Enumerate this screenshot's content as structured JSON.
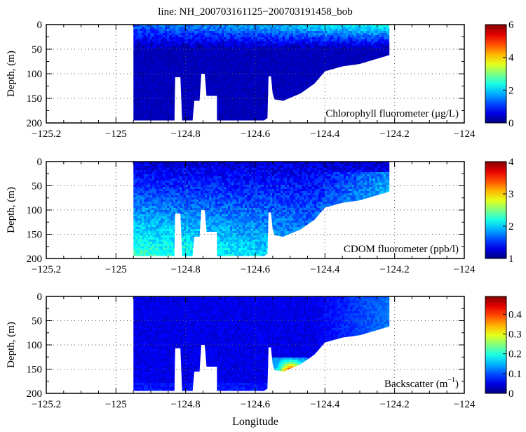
{
  "title": "line: NH_200703161125−200703191458_bob",
  "chart_data": {
    "type": "heatmap",
    "xlabel": "Longitude",
    "ylabel": "Depth, (m)",
    "xlim": [
      -125.2,
      -124
    ],
    "ylim": [
      0,
      200
    ],
    "y_reversed": true,
    "grid": true,
    "x_ticks": [
      -125.2,
      -125,
      -124.8,
      -124.6,
      -124.4,
      -124.2,
      -124
    ],
    "x_tick_labels": [
      "−125.2",
      "−125",
      "−124.8",
      "−124.6",
      "−124.4",
      "−124.2",
      "−124"
    ],
    "y_ticks": [
      0,
      50,
      100,
      150,
      200
    ],
    "y_tick_labels": [
      "0",
      "50",
      "100",
      "150",
      "200"
    ],
    "colormap": "jet",
    "coverage": [
      [
        -124.95,
        0
      ],
      [
        -124.215,
        0
      ],
      [
        -124.215,
        62
      ],
      [
        -124.3,
        80
      ],
      [
        -124.35,
        85
      ],
      [
        -124.4,
        95
      ],
      [
        -124.43,
        120
      ],
      [
        -124.47,
        140
      ],
      [
        -124.52,
        155
      ],
      [
        -124.545,
        152
      ],
      [
        -124.55,
        140
      ],
      [
        -124.555,
        105
      ],
      [
        -124.562,
        105
      ],
      [
        -124.565,
        190
      ],
      [
        -124.575,
        195
      ],
      [
        -124.71,
        195
      ],
      [
        -124.71,
        145
      ],
      [
        -124.74,
        145
      ],
      [
        -124.745,
        100
      ],
      [
        -124.755,
        100
      ],
      [
        -124.76,
        155
      ],
      [
        -124.775,
        155
      ],
      [
        -124.78,
        195
      ],
      [
        -124.81,
        195
      ],
      [
        -124.815,
        107
      ],
      [
        -124.83,
        107
      ],
      [
        -124.832,
        195
      ],
      [
        -124.845,
        195
      ],
      [
        -124.847,
        195
      ],
      [
        -124.95,
        195
      ]
    ],
    "panels": [
      {
        "label": "Chlorophyll fluorometer (μg/L)",
        "variable": "chlorophyll",
        "clim": [
          0,
          6
        ],
        "cbar_ticks": [
          0,
          2,
          4,
          6
        ],
        "cbar_tick_labels": [
          "0",
          "2",
          "4",
          "6"
        ],
        "surface_value": 1.6,
        "deep_value": 0.4,
        "max_observed": 2.3
      },
      {
        "label": "CDOM fluorometer (ppb/l)",
        "variable": "cdom",
        "clim": [
          1,
          4
        ],
        "cbar_ticks": [
          1,
          2,
          3,
          4
        ],
        "cbar_tick_labels": [
          "1",
          "2",
          "3",
          "4"
        ],
        "surface_value": 1.3,
        "deep_value": 2.2,
        "max_observed": 2.8
      },
      {
        "label": "Backscatter (m",
        "label_sup": "−1",
        "label_end": ")",
        "variable": "backscatter",
        "clim": [
          0,
          0.49
        ],
        "cbar_ticks": [
          0,
          0.1,
          0.2,
          0.3,
          0.4
        ],
        "cbar_tick_labels": [
          "0",
          "0.1",
          "0.2",
          "0.3",
          "0.4"
        ],
        "surface_value": 0.08,
        "deep_value": 0.06,
        "max_observed": 0.45
      }
    ]
  }
}
